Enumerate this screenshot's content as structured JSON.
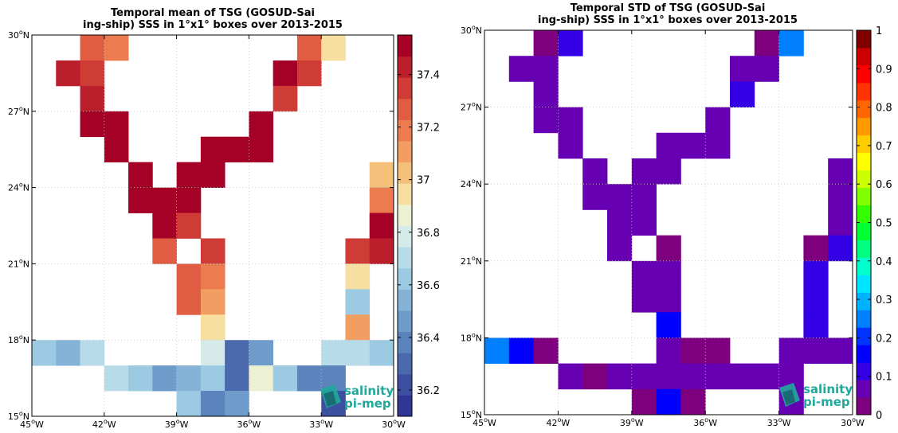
{
  "chart_data": [
    {
      "type": "heatmap",
      "title_lines": [
        "Temporal mean of TSG (GOSUD-Sai",
        "ing-ship) SSS in 1°x1° boxes over 2013-2015"
      ],
      "xlim": [
        -45,
        -30
      ],
      "ylim": [
        15,
        30
      ],
      "x_ticks": [
        -45,
        -42,
        -39,
        -36,
        -33,
        -30
      ],
      "x_tick_labels": [
        "45°W",
        "42°W",
        "39°W",
        "36°W",
        "33°W",
        "30°W"
      ],
      "y_ticks": [
        15,
        18,
        21,
        24,
        27,
        30
      ],
      "y_tick_labels": [
        "15°N",
        "18°N",
        "21°N",
        "24°N",
        "27°N",
        "30°N"
      ],
      "grid": true,
      "colorbar": {
        "vmin": 36.1,
        "vmax": 37.55,
        "ticks": [
          36.2,
          36.4,
          36.6,
          36.8,
          37,
          37.2,
          37.4
        ],
        "tick_labels": [
          "36.2",
          "36.4",
          "36.6",
          "36.8",
          "37",
          "37.2",
          "37.4"
        ],
        "colors": [
          "#313695",
          "#3c4fa0",
          "#4a6aad",
          "#5b83bc",
          "#6e9dcb",
          "#84b3d7",
          "#9ccae2",
          "#b8dbe9",
          "#d6ebe9",
          "#ecf1d4",
          "#f6dfa0",
          "#f5c07a",
          "#f29e62",
          "#ec7c50",
          "#e05c42",
          "#cf3c36",
          "#bb1f2c",
          "#a50026"
        ]
      },
      "cells": [
        {
          "lon": -43,
          "lat": 29,
          "value": 37.3
        },
        {
          "lon": -42,
          "lat": 29,
          "value": 37.15
        },
        {
          "lon": -34,
          "lat": 29,
          "value": 37.3
        },
        {
          "lon": -33,
          "lat": 29,
          "value": 36.98
        },
        {
          "lon": -44,
          "lat": 28,
          "value": 37.4
        },
        {
          "lon": -43,
          "lat": 28,
          "value": 37.35
        },
        {
          "lon": -35,
          "lat": 28,
          "value": 37.5
        },
        {
          "lon": -34,
          "lat": 28,
          "value": 37.35
        },
        {
          "lon": -43,
          "lat": 27,
          "value": 37.4
        },
        {
          "lon": -35,
          "lat": 27,
          "value": 37.35
        },
        {
          "lon": -43,
          "lat": 26,
          "value": 37.5
        },
        {
          "lon": -42,
          "lat": 26,
          "value": 37.5
        },
        {
          "lon": -36,
          "lat": 26,
          "value": 37.5
        },
        {
          "lon": -42,
          "lat": 25,
          "value": 37.5
        },
        {
          "lon": -38,
          "lat": 25,
          "value": 37.5
        },
        {
          "lon": -37,
          "lat": 25,
          "value": 37.5
        },
        {
          "lon": -36,
          "lat": 25,
          "value": 37.5
        },
        {
          "lon": -41,
          "lat": 24,
          "value": 37.5
        },
        {
          "lon": -39,
          "lat": 24,
          "value": 37.5
        },
        {
          "lon": -38,
          "lat": 24,
          "value": 37.5
        },
        {
          "lon": -31,
          "lat": 24,
          "value": 37.05
        },
        {
          "lon": -41,
          "lat": 23,
          "value": 37.5
        },
        {
          "lon": -40,
          "lat": 23,
          "value": 37.5
        },
        {
          "lon": -39,
          "lat": 23,
          "value": 37.5
        },
        {
          "lon": -31,
          "lat": 23,
          "value": 37.15
        },
        {
          "lon": -40,
          "lat": 22,
          "value": 37.5
        },
        {
          "lon": -39,
          "lat": 22,
          "value": 37.35
        },
        {
          "lon": -31,
          "lat": 22,
          "value": 37.5
        },
        {
          "lon": -40,
          "lat": 21,
          "value": 37.25
        },
        {
          "lon": -38,
          "lat": 21,
          "value": 37.35
        },
        {
          "lon": -32,
          "lat": 21,
          "value": 37.35
        },
        {
          "lon": -31,
          "lat": 21,
          "value": 37.45
        },
        {
          "lon": -39,
          "lat": 20,
          "value": 37.25
        },
        {
          "lon": -38,
          "lat": 20,
          "value": 37.2
        },
        {
          "lon": -32,
          "lat": 20,
          "value": 36.98
        },
        {
          "lon": -39,
          "lat": 19,
          "value": 37.25
        },
        {
          "lon": -38,
          "lat": 19,
          "value": 37.1
        },
        {
          "lon": -32,
          "lat": 19,
          "value": 36.62
        },
        {
          "lon": -38,
          "lat": 18,
          "value": 36.95
        },
        {
          "lon": -32,
          "lat": 18,
          "value": 37.1
        },
        {
          "lon": -45,
          "lat": 17,
          "value": 36.62
        },
        {
          "lon": -44,
          "lat": 17,
          "value": 36.57
        },
        {
          "lon": -43,
          "lat": 17,
          "value": 36.7
        },
        {
          "lon": -38,
          "lat": 17,
          "value": 36.78
        },
        {
          "lon": -37,
          "lat": 17,
          "value": 36.3
        },
        {
          "lon": -36,
          "lat": 17,
          "value": 36.45
        },
        {
          "lon": -33,
          "lat": 17,
          "value": 36.7
        },
        {
          "lon": -32,
          "lat": 17,
          "value": 36.7
        },
        {
          "lon": -31,
          "lat": 17,
          "value": 36.6
        },
        {
          "lon": -42,
          "lat": 16,
          "value": 36.68
        },
        {
          "lon": -41,
          "lat": 16,
          "value": 36.62
        },
        {
          "lon": -40,
          "lat": 16,
          "value": 36.5
        },
        {
          "lon": -39,
          "lat": 16,
          "value": 36.55
        },
        {
          "lon": -38,
          "lat": 16,
          "value": 36.65
        },
        {
          "lon": -37,
          "lat": 16,
          "value": 36.3
        },
        {
          "lon": -36,
          "lat": 16,
          "value": 36.9
        },
        {
          "lon": -35,
          "lat": 16,
          "value": 36.6
        },
        {
          "lon": -34,
          "lat": 16,
          "value": 36.38
        },
        {
          "lon": -33,
          "lat": 16,
          "value": 36.35
        },
        {
          "lon": -39,
          "lat": 15,
          "value": 36.62
        },
        {
          "lon": -38,
          "lat": 15,
          "value": 36.42
        },
        {
          "lon": -37,
          "lat": 15,
          "value": 36.48
        },
        {
          "lon": -33,
          "lat": 15,
          "value": 36.2
        }
      ]
    },
    {
      "type": "heatmap",
      "title_lines": [
        "Temporal STD of TSG (GOSUD-Sai",
        "ing-ship) SSS in 1°x1° boxes over 2013-2015"
      ],
      "xlim": [
        -45,
        -30
      ],
      "ylim": [
        15,
        30
      ],
      "x_ticks": [
        -45,
        -42,
        -39,
        -36,
        -33,
        -30
      ],
      "x_tick_labels": [
        "45°W",
        "42°W",
        "39°W",
        "36°W",
        "33°W",
        "30°W"
      ],
      "y_ticks": [
        15,
        18,
        21,
        24,
        27,
        30
      ],
      "y_tick_labels": [
        "15°N",
        "18°N",
        "21°N",
        "24°N",
        "27°N",
        "30°N"
      ],
      "grid": true,
      "colorbar": {
        "vmin": 0,
        "vmax": 1,
        "ticks": [
          0,
          0.1,
          0.2,
          0.3,
          0.4,
          0.5,
          0.6,
          0.7,
          0.8,
          0.9,
          1
        ],
        "tick_labels": [
          "0",
          "0.1",
          "0.2",
          "0.3",
          "0.4",
          "0.5",
          "0.6",
          "0.7",
          "0.8",
          "0.9",
          "1"
        ],
        "colors": [
          "#7f007f",
          "#6600b2",
          "#3300e5",
          "#0000ff",
          "#0033ff",
          "#0080ff",
          "#00b2ff",
          "#00e5ff",
          "#00ffcc",
          "#00ff80",
          "#00ff33",
          "#33ff00",
          "#80ff00",
          "#ccff00",
          "#ffff00",
          "#ffcc00",
          "#ff9900",
          "#ff6600",
          "#ff3300",
          "#ff0000",
          "#cc0000",
          "#800000"
        ]
      },
      "cells": [
        {
          "lon": -43,
          "lat": 29,
          "value": 0.04
        },
        {
          "lon": -42,
          "lat": 29,
          "value": 0.1
        },
        {
          "lon": -34,
          "lat": 29,
          "value": 0.04
        },
        {
          "lon": -33,
          "lat": 29,
          "value": 0.23
        },
        {
          "lon": -44,
          "lat": 28,
          "value": 0.09
        },
        {
          "lon": -43,
          "lat": 28,
          "value": 0.09
        },
        {
          "lon": -35,
          "lat": 28,
          "value": 0.05
        },
        {
          "lon": -34,
          "lat": 28,
          "value": 0.08
        },
        {
          "lon": -43,
          "lat": 27,
          "value": 0.05
        },
        {
          "lon": -35,
          "lat": 27,
          "value": 0.1
        },
        {
          "lon": -43,
          "lat": 26,
          "value": 0.05
        },
        {
          "lon": -42,
          "lat": 26,
          "value": 0.05
        },
        {
          "lon": -36,
          "lat": 26,
          "value": 0.05
        },
        {
          "lon": -42,
          "lat": 25,
          "value": 0.05
        },
        {
          "lon": -38,
          "lat": 25,
          "value": 0.05
        },
        {
          "lon": -37,
          "lat": 25,
          "value": 0.05
        },
        {
          "lon": -36,
          "lat": 25,
          "value": 0.05
        },
        {
          "lon": -41,
          "lat": 24,
          "value": 0.05
        },
        {
          "lon": -39,
          "lat": 24,
          "value": 0.07
        },
        {
          "lon": -38,
          "lat": 24,
          "value": 0.05
        },
        {
          "lon": -31,
          "lat": 24,
          "value": 0.05
        },
        {
          "lon": -41,
          "lat": 23,
          "value": 0.05
        },
        {
          "lon": -40,
          "lat": 23,
          "value": 0.05
        },
        {
          "lon": -39,
          "lat": 23,
          "value": 0.05
        },
        {
          "lon": -31,
          "lat": 23,
          "value": 0.05
        },
        {
          "lon": -40,
          "lat": 22,
          "value": 0.08
        },
        {
          "lon": -39,
          "lat": 22,
          "value": 0.08
        },
        {
          "lon": -31,
          "lat": 22,
          "value": 0.05
        },
        {
          "lon": -40,
          "lat": 21,
          "value": 0.08
        },
        {
          "lon": -38,
          "lat": 21,
          "value": 0.04
        },
        {
          "lon": -32,
          "lat": 21,
          "value": 0.04
        },
        {
          "lon": -31,
          "lat": 21,
          "value": 0.11
        },
        {
          "lon": -39,
          "lat": 20,
          "value": 0.07
        },
        {
          "lon": -38,
          "lat": 20,
          "value": 0.07
        },
        {
          "lon": -32,
          "lat": 20,
          "value": 0.13
        },
        {
          "lon": -39,
          "lat": 19,
          "value": 0.07
        },
        {
          "lon": -38,
          "lat": 19,
          "value": 0.07
        },
        {
          "lon": -32,
          "lat": 19,
          "value": 0.13
        },
        {
          "lon": -38,
          "lat": 18,
          "value": 0.14
        },
        {
          "lon": -32,
          "lat": 18,
          "value": 0.13
        },
        {
          "lon": -45,
          "lat": 17,
          "value": 0.23
        },
        {
          "lon": -44,
          "lat": 17,
          "value": 0.18
        },
        {
          "lon": -43,
          "lat": 17,
          "value": 0.04
        },
        {
          "lon": -38,
          "lat": 17,
          "value": 0.07
        },
        {
          "lon": -37,
          "lat": 17,
          "value": 0.04
        },
        {
          "lon": -36,
          "lat": 17,
          "value": 0.04
        },
        {
          "lon": -33,
          "lat": 17,
          "value": 0.07
        },
        {
          "lon": -32,
          "lat": 17,
          "value": 0.07
        },
        {
          "lon": -31,
          "lat": 17,
          "value": 0.07
        },
        {
          "lon": -42,
          "lat": 16,
          "value": 0.08
        },
        {
          "lon": -41,
          "lat": 16,
          "value": 0.04
        },
        {
          "lon": -40,
          "lat": 16,
          "value": 0.07
        },
        {
          "lon": -39,
          "lat": 16,
          "value": 0.07
        },
        {
          "lon": -38,
          "lat": 16,
          "value": 0.07
        },
        {
          "lon": -37,
          "lat": 16,
          "value": 0.07
        },
        {
          "lon": -36,
          "lat": 16,
          "value": 0.08
        },
        {
          "lon": -35,
          "lat": 16,
          "value": 0.08
        },
        {
          "lon": -34,
          "lat": 16,
          "value": 0.08
        },
        {
          "lon": -33,
          "lat": 16,
          "value": 0.08
        },
        {
          "lon": -39,
          "lat": 15,
          "value": 0.04
        },
        {
          "lon": -38,
          "lat": 15,
          "value": 0.14
        },
        {
          "lon": -37,
          "lat": 15,
          "value": 0.04
        },
        {
          "lon": -33,
          "lat": 15,
          "value": 0.09
        }
      ]
    }
  ],
  "logo": {
    "line1": "salinity",
    "line2": "pi-mep",
    "color": "#1fa99b",
    "dark": "#0d3b4a"
  }
}
